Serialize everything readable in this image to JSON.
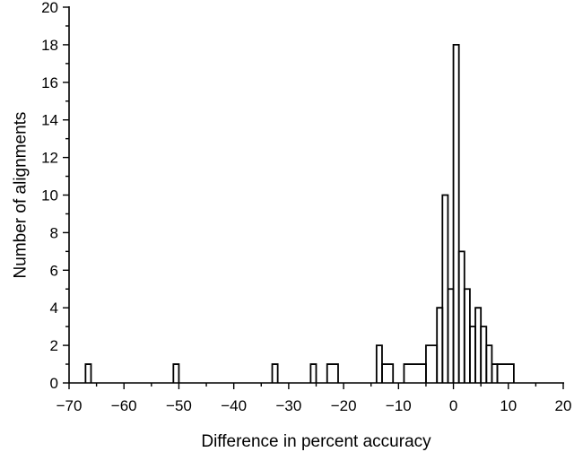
{
  "chart_data": {
    "type": "bar",
    "title": "",
    "xlabel": "Difference in percent accuracy",
    "ylabel": "Number of alignments",
    "xlim": [
      -70,
      20
    ],
    "ylim": [
      0,
      20
    ],
    "bin_width": 1,
    "x_ticks": [
      -70,
      -60,
      -50,
      -40,
      -30,
      -20,
      -10,
      0,
      10,
      20
    ],
    "x_tick_labels": [
      "−70",
      "−60",
      "−50",
      "−40",
      "−30",
      "−20",
      "−10",
      "0",
      "10",
      "20"
    ],
    "y_ticks": [
      0,
      2,
      4,
      6,
      8,
      10,
      12,
      14,
      16,
      18,
      20
    ],
    "y_tick_labels": [
      "0",
      "2",
      "4",
      "6",
      "8",
      "10",
      "12",
      "14",
      "16",
      "18",
      "20"
    ],
    "grid": false,
    "legend": "none",
    "bins": [
      {
        "x0": -67,
        "x1": -66,
        "count": 1
      },
      {
        "x0": -51,
        "x1": -50,
        "count": 1
      },
      {
        "x0": -33,
        "x1": -32,
        "count": 1
      },
      {
        "x0": -26,
        "x1": -25,
        "count": 1
      },
      {
        "x0": -23,
        "x1": -21,
        "count": 1
      },
      {
        "x0": -14,
        "x1": -13,
        "count": 2
      },
      {
        "x0": -13,
        "x1": -11,
        "count": 1
      },
      {
        "x0": -9,
        "x1": -5,
        "count": 1
      },
      {
        "x0": -5,
        "x1": -3,
        "count": 2
      },
      {
        "x0": -3,
        "x1": -2,
        "count": 4
      },
      {
        "x0": -2,
        "x1": -1,
        "count": 10
      },
      {
        "x0": -1,
        "x1": 0,
        "count": 5
      },
      {
        "x0": 0,
        "x1": 1,
        "count": 18
      },
      {
        "x0": 1,
        "x1": 2,
        "count": 7
      },
      {
        "x0": 2,
        "x1": 3,
        "count": 5
      },
      {
        "x0": 3,
        "x1": 4,
        "count": 3
      },
      {
        "x0": 4,
        "x1": 5,
        "count": 4
      },
      {
        "x0": 5,
        "x1": 6,
        "count": 3
      },
      {
        "x0": 6,
        "x1": 7,
        "count": 2
      },
      {
        "x0": 7,
        "x1": 8,
        "count": 1
      },
      {
        "x0": 8,
        "x1": 11,
        "count": 1
      }
    ]
  }
}
